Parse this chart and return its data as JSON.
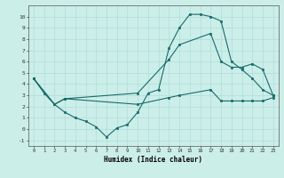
{
  "xlabel": "Humidex (Indice chaleur)",
  "xlim": [
    -0.5,
    23.5
  ],
  "ylim": [
    -1.5,
    11.0
  ],
  "yticks": [
    -1,
    0,
    1,
    2,
    3,
    4,
    5,
    6,
    7,
    8,
    9,
    10
  ],
  "xticks": [
    0,
    1,
    2,
    3,
    4,
    5,
    6,
    7,
    8,
    9,
    10,
    11,
    12,
    13,
    14,
    15,
    16,
    17,
    18,
    19,
    20,
    21,
    22,
    23
  ],
  "bg_color": "#cceee8",
  "line_color": "#1a6b6b",
  "grid_color": "#aadddd",
  "lines": [
    {
      "x": [
        0,
        1,
        2,
        3,
        4,
        5,
        6,
        7,
        8,
        9,
        10,
        11,
        12,
        13,
        14,
        15,
        16,
        17,
        18,
        19,
        20,
        21,
        22,
        23
      ],
      "y": [
        4.5,
        3.2,
        2.2,
        1.5,
        1.0,
        0.7,
        0.2,
        -0.7,
        0.1,
        0.4,
        1.5,
        3.2,
        3.5,
        7.2,
        9.0,
        10.2,
        10.2,
        10.0,
        9.6,
        6.0,
        5.3,
        4.5,
        3.5,
        3.0
      ]
    },
    {
      "x": [
        0,
        2,
        3,
        10,
        13,
        14,
        17,
        18,
        19,
        20,
        21,
        22,
        23
      ],
      "y": [
        4.5,
        2.2,
        2.7,
        3.2,
        6.2,
        7.5,
        8.5,
        6.0,
        5.5,
        5.5,
        5.8,
        5.3,
        3.0
      ]
    },
    {
      "x": [
        0,
        2,
        3,
        10,
        13,
        14,
        17,
        18,
        19,
        20,
        21,
        22,
        23
      ],
      "y": [
        4.5,
        2.2,
        2.7,
        2.2,
        2.8,
        3.0,
        3.5,
        2.5,
        2.5,
        2.5,
        2.5,
        2.5,
        2.8
      ]
    }
  ]
}
